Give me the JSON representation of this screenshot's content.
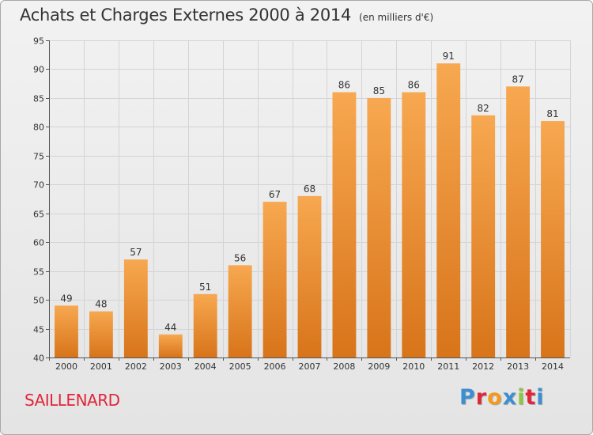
{
  "header": {
    "title": "Achats et Charges Externes 2000 à 2014",
    "unit": "(en milliers d'€)"
  },
  "footer": {
    "commune": "SAILLENARD",
    "logo": "Proxiti",
    "logo_colors": [
      "#3b8fd1",
      "#e0263a",
      "#f39a1e",
      "#3b8fd1",
      "#8dc63f",
      "#e0263a",
      "#3b8fd1"
    ]
  },
  "colors": {
    "bar_light": "#f7a850",
    "bar_dark": "#d8741a",
    "grid": "#d4d4d4",
    "axis": "#555555",
    "text": "#333333",
    "commune": "#e0263a"
  },
  "chart_data": {
    "type": "bar",
    "categories": [
      "2000",
      "2001",
      "2002",
      "2003",
      "2004",
      "2005",
      "2006",
      "2007",
      "2008",
      "2009",
      "2010",
      "2011",
      "2012",
      "2013",
      "2014"
    ],
    "values": [
      49,
      48,
      57,
      44,
      51,
      56,
      67,
      68,
      86,
      85,
      86,
      91,
      82,
      87,
      81
    ],
    "title": "Achats et Charges Externes 2000 à 2014",
    "subtitle": "(en milliers d'€)",
    "xlabel": "",
    "ylabel": "",
    "ylim": [
      40,
      95
    ],
    "yticks": [
      40,
      45,
      50,
      55,
      60,
      65,
      70,
      75,
      80,
      85,
      90,
      95
    ],
    "grid": true,
    "data_labels": true
  }
}
